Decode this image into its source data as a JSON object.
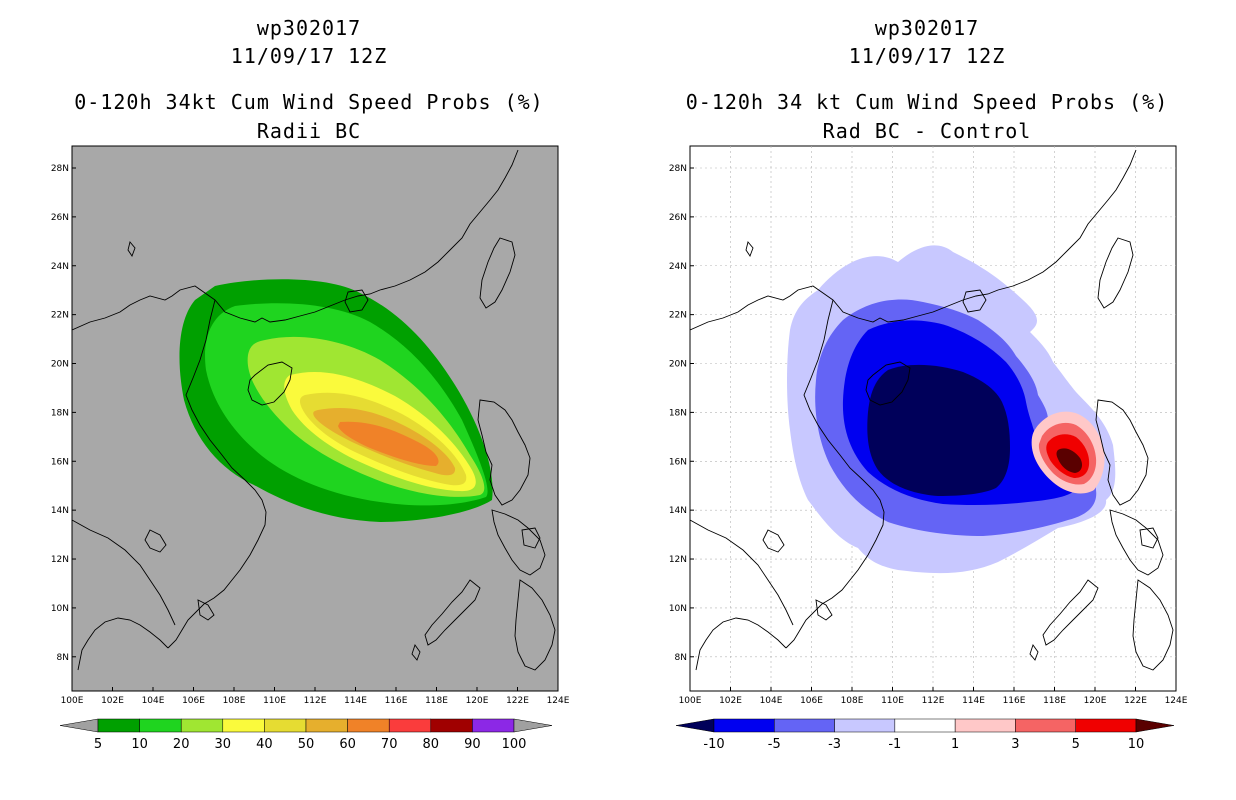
{
  "left": {
    "title1": "wp302017",
    "title2": "11/09/17 12Z",
    "title3": "0-120h 34kt Cum Wind Speed Probs (%)",
    "title4": "Radii BC",
    "colorbar": {
      "labels": [
        "5",
        "10",
        "20",
        "30",
        "40",
        "50",
        "60",
        "70",
        "80",
        "90",
        "100"
      ],
      "colors": [
        "#a0a0a0",
        "#00a000",
        "#1fd41f",
        "#a0e632",
        "#fafa3c",
        "#e6dc32",
        "#e6af2d",
        "#f08228",
        "#fa3c3c",
        "#a00000",
        "#8c28e6",
        "#a0a0a0"
      ]
    }
  },
  "right": {
    "title1": "wp302017",
    "title2": "11/09/17 12Z",
    "title3": "0-120h 34 kt Cum Wind Speed Probs (%)",
    "title4": "Rad BC - Control",
    "colorbar": {
      "labels": [
        "-10",
        "-5",
        "-3",
        "-1",
        "1",
        "3",
        "5",
        "10"
      ],
      "colors": [
        "#00005a",
        "#0000f0",
        "#6464f5",
        "#c8c8ff",
        "#ffffff",
        "#ffc8c8",
        "#f56464",
        "#f00000",
        "#5a0000"
      ]
    }
  },
  "map": {
    "lon_labels": [
      "100E",
      "102E",
      "104E",
      "106E",
      "108E",
      "110E",
      "112E",
      "114E",
      "116E",
      "118E",
      "120E",
      "122E",
      "124E"
    ],
    "lat_labels": [
      "8N",
      "10N",
      "12N",
      "14N",
      "16N",
      "18N",
      "20N",
      "22N",
      "24N",
      "26N",
      "28N"
    ],
    "lon_values": [
      100,
      102,
      104,
      106,
      108,
      110,
      112,
      114,
      116,
      118,
      120,
      122,
      124
    ],
    "lat_values": [
      8,
      10,
      12,
      14,
      16,
      18,
      20,
      22,
      24,
      26,
      28
    ],
    "lon_range": [
      100,
      124
    ],
    "lat_range": [
      6.6,
      28.9
    ]
  },
  "colors": {
    "ocean_left": "#a8a8a8",
    "ocean_right": "#ffffff",
    "grid": "#b4b4b4"
  }
}
